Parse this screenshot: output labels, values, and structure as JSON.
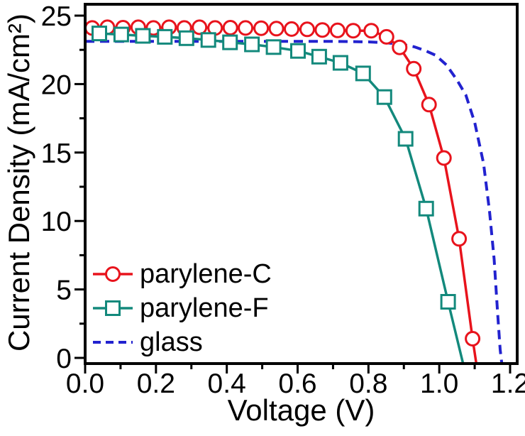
{
  "chart_data": {
    "type": "line",
    "title": "",
    "xlabel": "Voltage (V)",
    "ylabel": "Current Density (mA/cm²)",
    "xlim": [
      0,
      1.22
    ],
    "ylim": [
      -0.4,
      25.8
    ],
    "grid": false,
    "axis_color": "#000000",
    "xticks": {
      "values": [
        0.0,
        0.2,
        0.4,
        0.6,
        0.8,
        1.0,
        1.2
      ],
      "labels": [
        "0.0",
        "0.2",
        "0.4",
        "0.6",
        "0.8",
        "1.0",
        "1.2"
      ]
    },
    "yticks": {
      "values": [
        0,
        5,
        10,
        15,
        20,
        25
      ],
      "labels": [
        "0",
        "5",
        "10",
        "15",
        "20",
        "25"
      ]
    },
    "xminor": [
      0.1,
      0.3,
      0.5,
      0.7,
      0.9,
      1.1
    ],
    "yminor": [
      2.5,
      7.5,
      12.5,
      17.5,
      22.5
    ],
    "legend": {
      "position": "lower-left"
    },
    "series": [
      {
        "name": "parylene-C",
        "color": "#e8131c",
        "marker": "circle",
        "line_style": "solid",
        "points": [
          [
            0.02,
            24.1
          ],
          [
            0.063,
            24.15
          ],
          [
            0.107,
            24.12
          ],
          [
            0.15,
            24.15
          ],
          [
            0.193,
            24.1
          ],
          [
            0.237,
            24.15
          ],
          [
            0.28,
            24.1
          ],
          [
            0.323,
            24.15
          ],
          [
            0.367,
            24.1
          ],
          [
            0.41,
            24.12
          ],
          [
            0.453,
            24.1
          ],
          [
            0.497,
            24.08
          ],
          [
            0.54,
            24.05
          ],
          [
            0.583,
            24.02
          ],
          [
            0.627,
            24.0
          ],
          [
            0.67,
            23.95
          ],
          [
            0.713,
            23.92
          ],
          [
            0.757,
            23.9
          ],
          [
            0.808,
            23.9
          ],
          [
            0.851,
            23.45
          ],
          [
            0.888,
            22.68
          ],
          [
            0.928,
            21.12
          ],
          [
            0.971,
            18.5
          ],
          [
            1.013,
            14.6
          ],
          [
            1.056,
            8.7
          ],
          [
            1.094,
            1.4
          ]
        ],
        "tail": [
          [
            1.105,
            -0.5
          ]
        ]
      },
      {
        "name": "parylene-F",
        "color": "#13897c",
        "marker": "square",
        "line_style": "solid",
        "points": [
          [
            0.04,
            23.7
          ],
          [
            0.102,
            23.62
          ],
          [
            0.163,
            23.52
          ],
          [
            0.225,
            23.45
          ],
          [
            0.286,
            23.35
          ],
          [
            0.348,
            23.22
          ],
          [
            0.409,
            23.05
          ],
          [
            0.471,
            22.9
          ],
          [
            0.532,
            22.7
          ],
          [
            0.601,
            22.42
          ],
          [
            0.661,
            22.0
          ],
          [
            0.721,
            21.55
          ],
          [
            0.785,
            20.78
          ],
          [
            0.845,
            19.05
          ],
          [
            0.905,
            16.0
          ],
          [
            0.963,
            10.9
          ],
          [
            1.025,
            4.1
          ]
        ],
        "tail": [
          [
            1.068,
            -0.5
          ]
        ]
      },
      {
        "name": "glass",
        "color": "#2222cf",
        "marker": "none",
        "line_style": "dashed",
        "points": [
          [
            0.0,
            23.12
          ],
          [
            0.1,
            23.12
          ],
          [
            0.2,
            23.12
          ],
          [
            0.3,
            23.12
          ],
          [
            0.4,
            23.12
          ],
          [
            0.5,
            23.12
          ],
          [
            0.6,
            23.12
          ],
          [
            0.7,
            23.12
          ],
          [
            0.75,
            23.1
          ],
          [
            0.8,
            23.08
          ],
          [
            0.85,
            23.02
          ],
          [
            0.9,
            22.88
          ],
          [
            0.93,
            22.72
          ],
          [
            0.96,
            22.45
          ],
          [
            0.99,
            22.1
          ],
          [
            1.02,
            21.4
          ],
          [
            1.05,
            20.3
          ],
          [
            1.075,
            19.2
          ],
          [
            1.1,
            17.2
          ],
          [
            1.125,
            14.2
          ],
          [
            1.142,
            10.7
          ],
          [
            1.155,
            7.2
          ],
          [
            1.165,
            3.2
          ],
          [
            1.172,
            0.6
          ]
        ],
        "tail": [
          [
            1.177,
            -0.5
          ]
        ]
      }
    ]
  }
}
